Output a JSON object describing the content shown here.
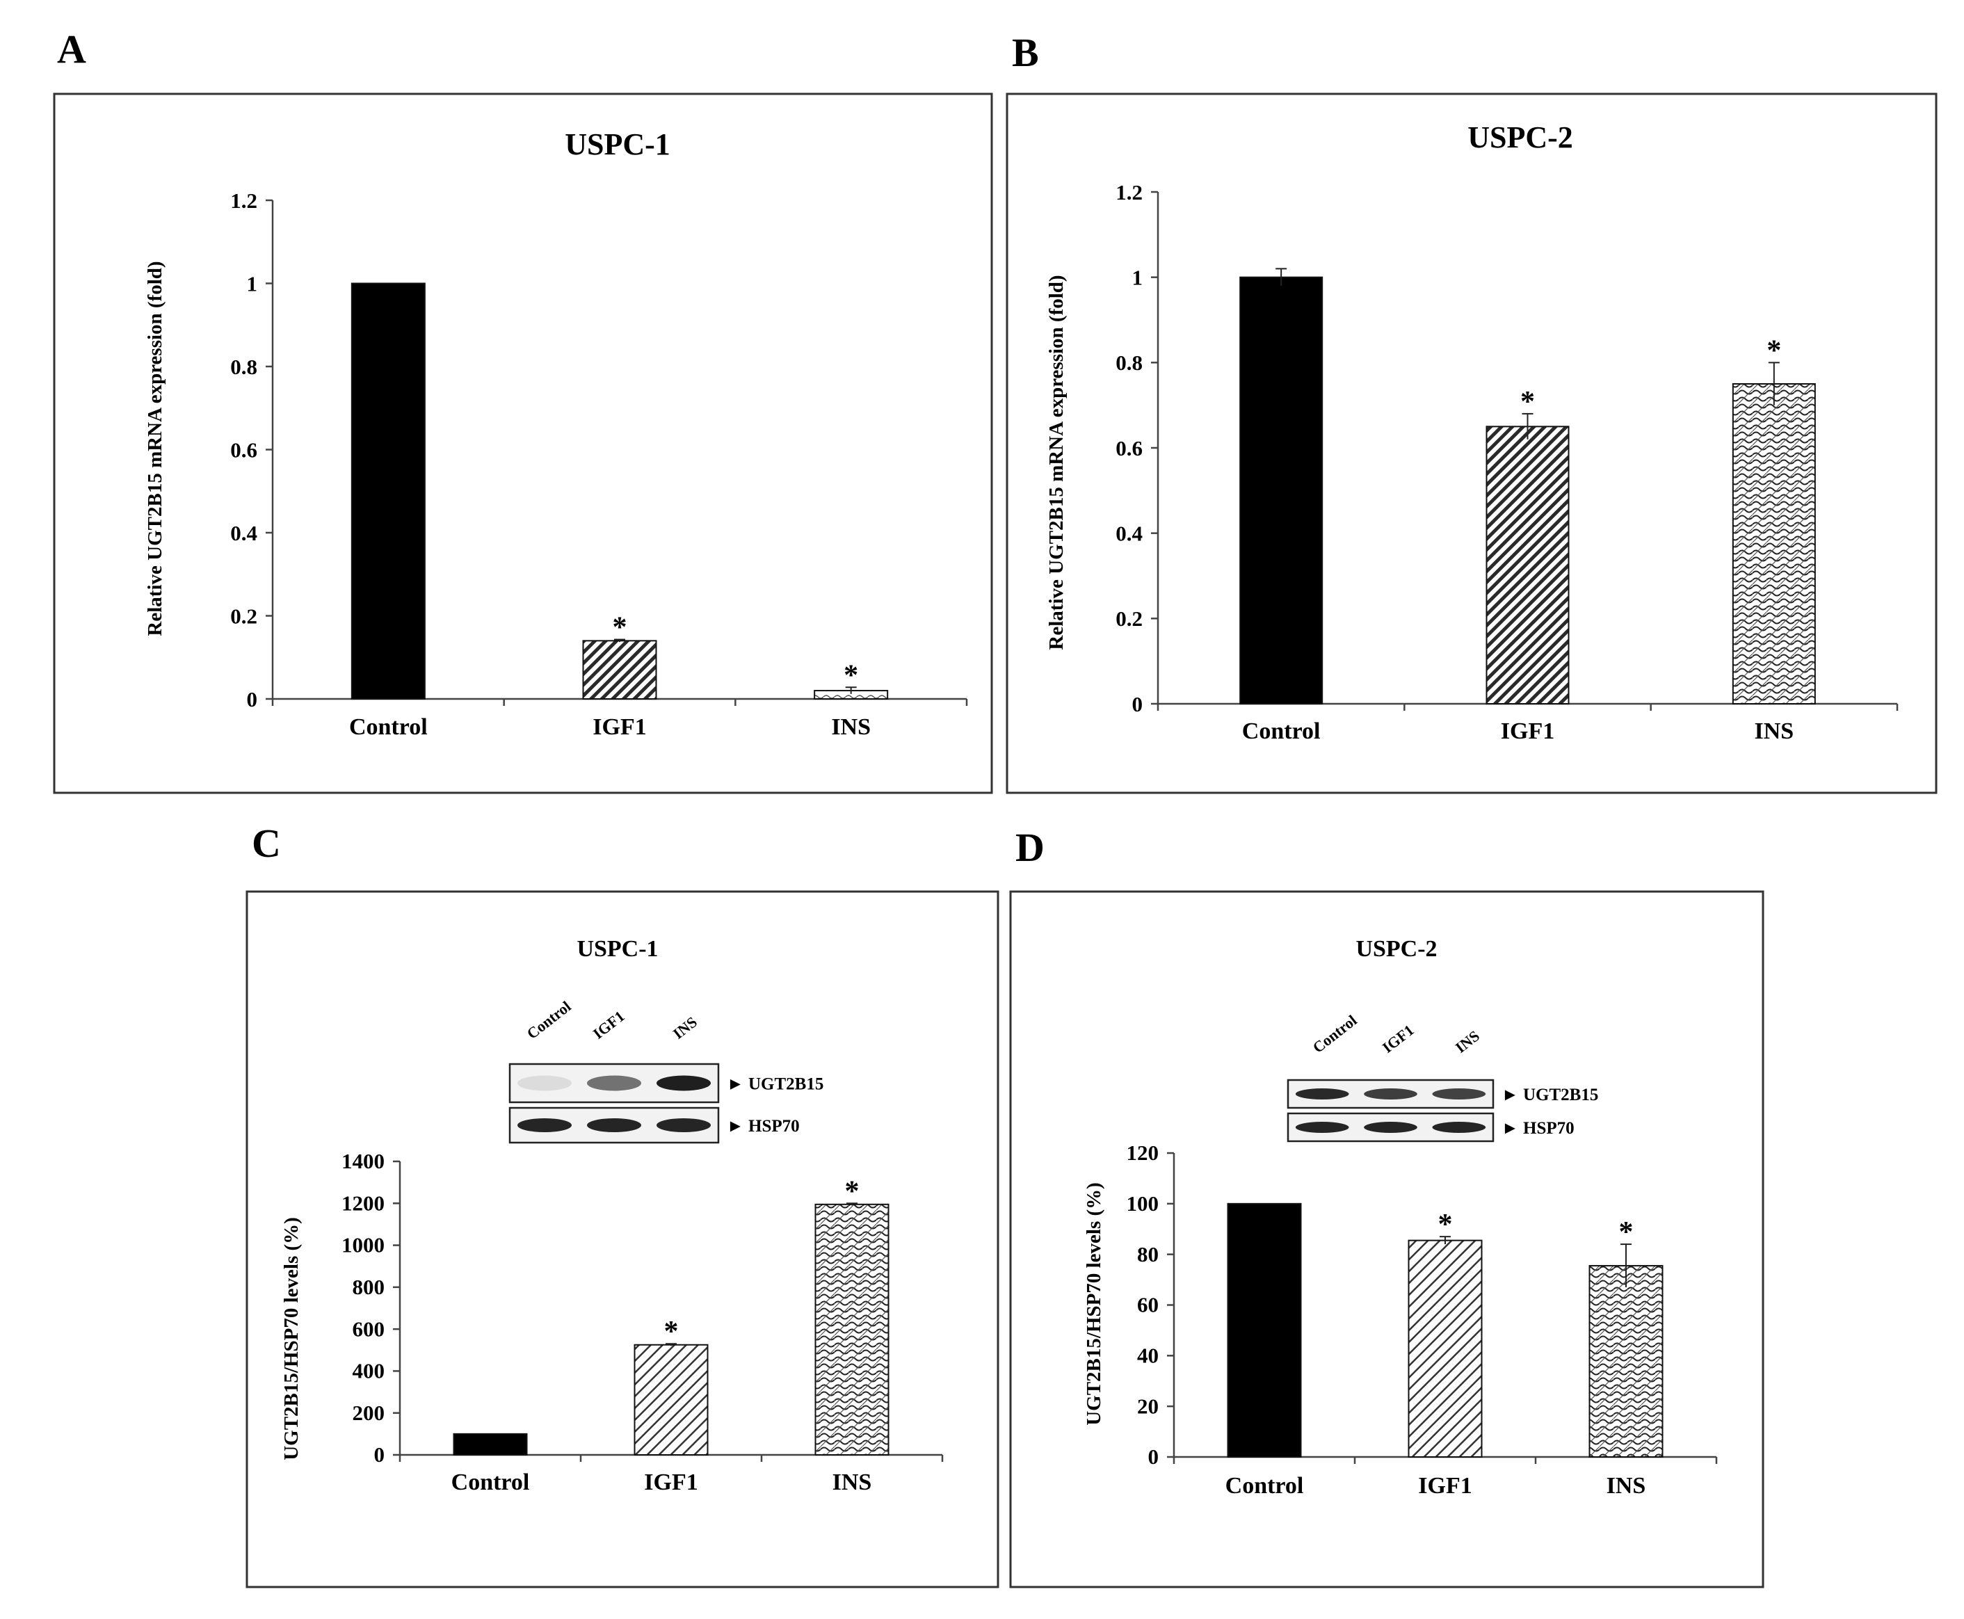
{
  "chart_data": [
    {
      "panel": "A",
      "type": "bar",
      "title": "USPC-1",
      "ylabel": "Relative UGT2B15 mRNA expression (fold)",
      "xlabel": "",
      "ylim": [
        0,
        1.2
      ],
      "yticks": [
        "0",
        "0.2",
        "0.4",
        "0.6",
        "0.8",
        "1",
        "1.2"
      ],
      "categories": [
        "Control",
        "IGF1",
        "INS"
      ],
      "values": [
        1.0,
        0.14,
        0.02
      ],
      "errors": [
        0.0,
        0.003,
        0.008
      ],
      "significance": [
        "",
        "*",
        "*"
      ],
      "patterns": [
        "solid",
        "hatch",
        "wave-light"
      ]
    },
    {
      "panel": "B",
      "type": "bar",
      "title": "USPC-2",
      "ylabel": "Relative UGT2B15 mRNA expression (fold)",
      "xlabel": "",
      "ylim": [
        0,
        1.2
      ],
      "yticks": [
        "0",
        "0.2",
        "0.4",
        "0.6",
        "0.8",
        "1",
        "1.2"
      ],
      "categories": [
        "Control",
        "IGF1",
        "INS"
      ],
      "values": [
        1.0,
        0.65,
        0.75
      ],
      "errors": [
        0.02,
        0.03,
        0.05
      ],
      "significance": [
        "",
        "*",
        "*"
      ],
      "patterns": [
        "solid",
        "hatch",
        "wave"
      ]
    },
    {
      "panel": "C",
      "type": "bar",
      "title": "USPC-1",
      "ylabel": "UGT2B15/HSP70 levels (%)",
      "xlabel": "",
      "ylim": [
        0,
        1400
      ],
      "yticks": [
        "0",
        "200",
        "400",
        "600",
        "800",
        "1000",
        "1200",
        "1400"
      ],
      "categories": [
        "Control",
        "IGF1",
        "INS"
      ],
      "values": [
        100,
        525,
        1195
      ],
      "errors": [
        0,
        5,
        5
      ],
      "significance": [
        "",
        "*",
        "*"
      ],
      "patterns": [
        "solid",
        "hatch-light",
        "wave"
      ],
      "blot": {
        "lanes": [
          "Control",
          "IGF1",
          "INS"
        ],
        "bands": [
          "UGT2B15",
          "HSP70"
        ],
        "arrow": "►"
      }
    },
    {
      "panel": "D",
      "type": "bar",
      "title": "USPC-2",
      "ylabel": "UGT2B15/HSP70  levels (%)",
      "xlabel": "",
      "ylim": [
        0,
        120
      ],
      "yticks": [
        "0",
        "20",
        "40",
        "60",
        "80",
        "100",
        "120"
      ],
      "categories": [
        "Control",
        "IGF1",
        "INS"
      ],
      "values": [
        100,
        85.5,
        75.5
      ],
      "errors": [
        0,
        1.5,
        8.5
      ],
      "significance": [
        "",
        "*",
        "*"
      ],
      "patterns": [
        "solid",
        "hatch-light",
        "wave"
      ],
      "blot": {
        "lanes": [
          "Control",
          "IGF1",
          "INS"
        ],
        "bands": [
          "UGT2B15",
          "HSP70"
        ],
        "arrow": "►"
      }
    }
  ]
}
